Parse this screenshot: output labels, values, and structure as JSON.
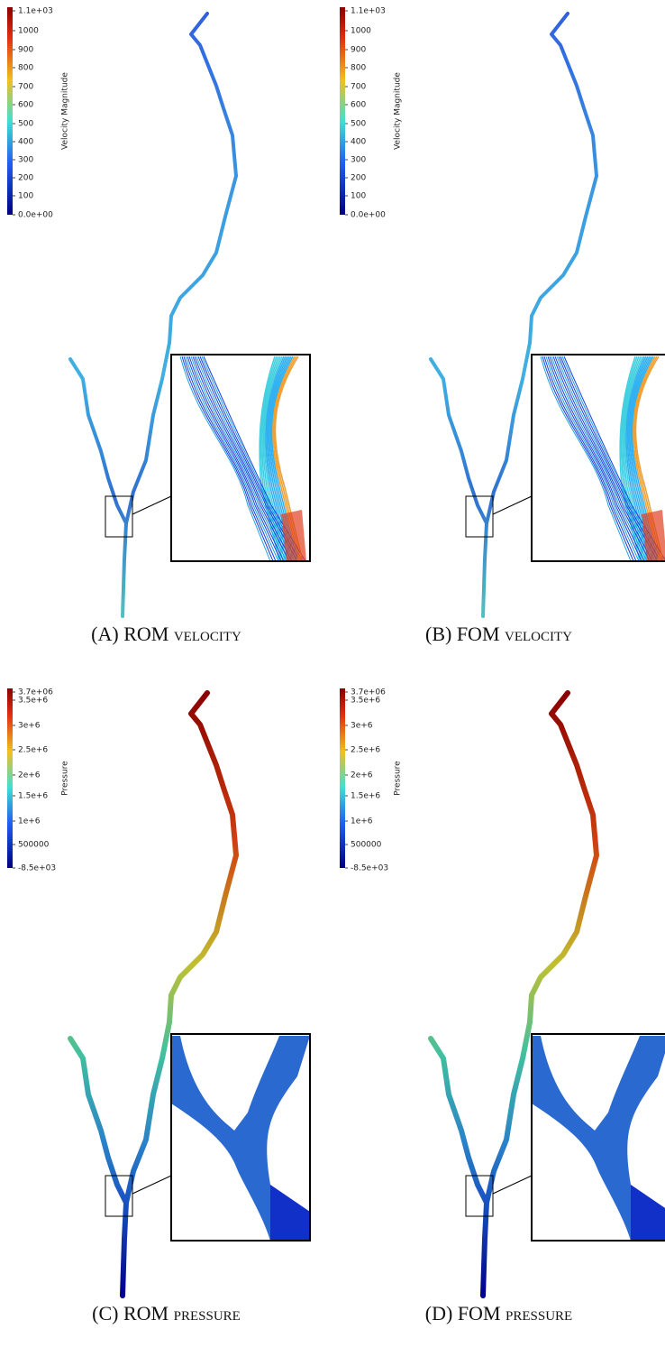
{
  "panels": [
    {
      "caption": "(A) ROM velocity",
      "colorbar": {
        "title": "Velocity Magnitude",
        "ticks": [
          "1.1e+03",
          "1000",
          "900",
          "800",
          "700",
          "600",
          "500",
          "400",
          "300",
          "200",
          "100",
          "0.0e+00"
        ]
      }
    },
    {
      "caption": "(B) FOM velocity",
      "colorbar": {
        "title": "Velocity Magnitude",
        "ticks": [
          "1.1e+03",
          "1000",
          "900",
          "800",
          "700",
          "600",
          "500",
          "400",
          "300",
          "200",
          "100",
          "0.0e+00"
        ]
      }
    },
    {
      "caption": "(C) ROM pressure",
      "colorbar": {
        "title": "Pressure",
        "ticks": [
          "3.7e+06",
          "3.5e+6",
          "3e+6",
          "2.5e+6",
          "2e+6",
          "1.5e+6",
          "1e+6",
          "500000",
          "-8.5e+03"
        ]
      }
    },
    {
      "caption": "(D) FOM pressure",
      "colorbar": {
        "title": "Pressure",
        "ticks": [
          "3.7e+06",
          "3.5e+6",
          "3e+6",
          "2.5e+6",
          "2e+6",
          "1.5e+6",
          "1e+6",
          "500000",
          "-8.5e+03"
        ]
      }
    }
  ]
}
